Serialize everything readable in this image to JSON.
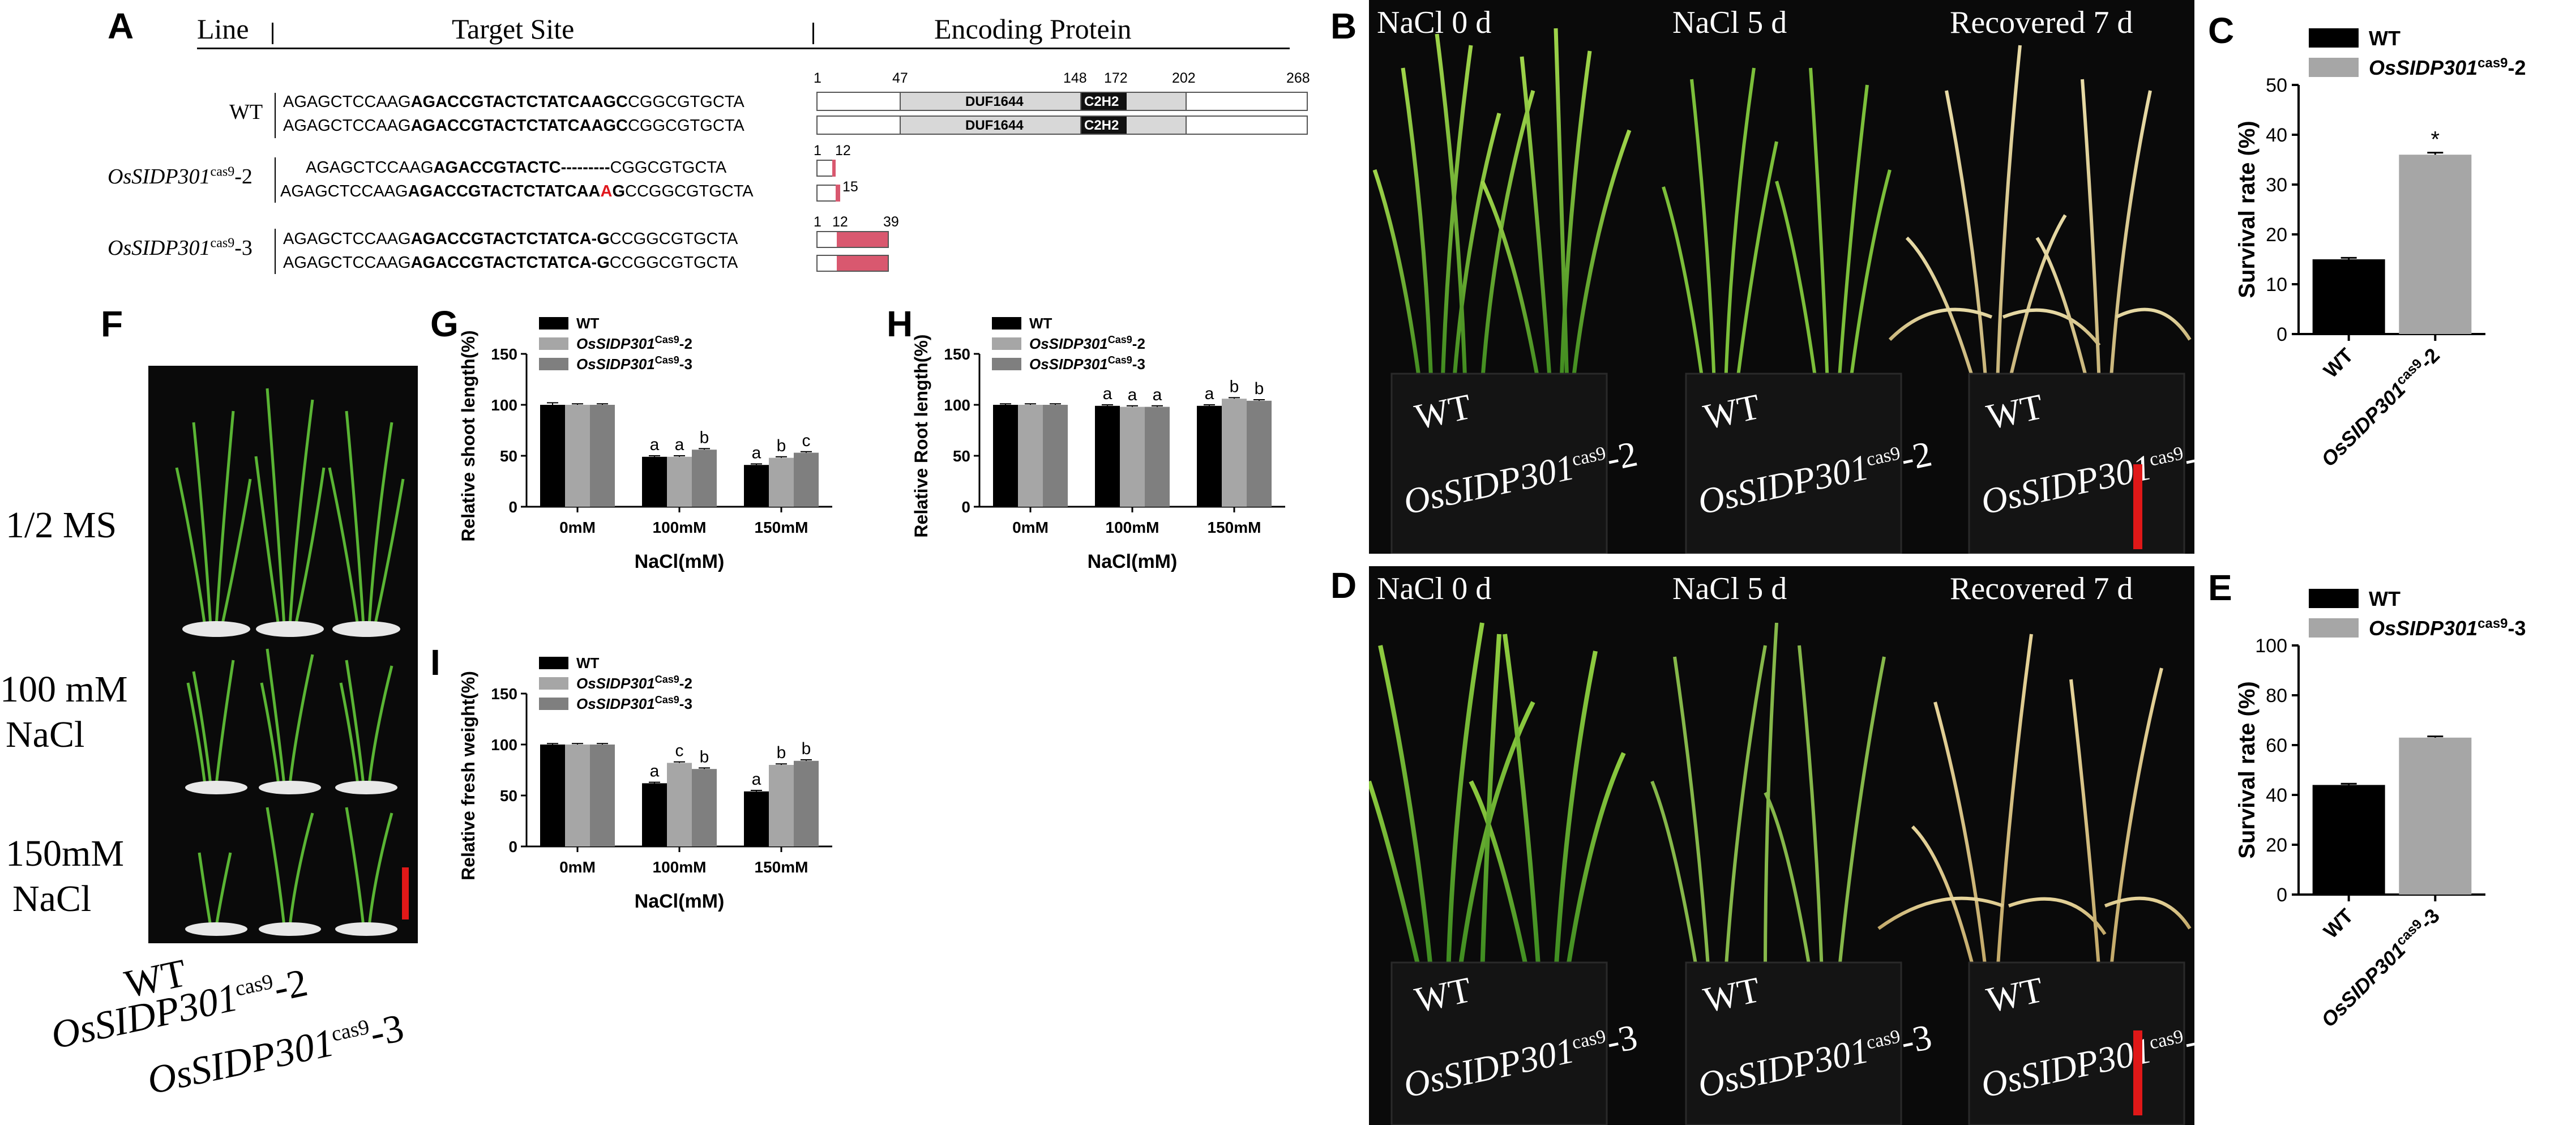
{
  "panels": {
    "A": "A",
    "B": "B",
    "C": "C",
    "D": "D",
    "E": "E",
    "F": "F",
    "G": "G",
    "H": "H",
    "I": "I"
  },
  "panel_a": {
    "header_line": "Line",
    "header_target": "Target Site",
    "header_protein": "Encoding Protein",
    "wt_label": "WT",
    "wt_seq1": {
      "pre": "AGAGCTCCAAG",
      "bold": "AGACCGTACTCTATCAAGC",
      "post": "CGGCGTGCTA"
    },
    "wt_seq2": {
      "pre": "AGAGCTCCAAG",
      "bold": "AGACCGTACTCTATCAAGC",
      "post": "CGGCGTGCTA"
    },
    "m2_label_main": "OsSIDP301",
    "m2_label_sup": "cas9",
    "m2_label_suffix": "-2",
    "m2_seq1": {
      "pre": "AGAGCTCCAAG",
      "bold": "AGACCGTACTC---------",
      "post": "CGGCGTGCTA"
    },
    "m2_seq2": {
      "pre": "AGAGCTCCAAG",
      "bold": "AGACCGTACTCTATCAA",
      "red": "A",
      "bold2": "G",
      "post": "CCGGCGTGCTA"
    },
    "m3_label_main": "OsSIDP301",
    "m3_label_sup": "cas9",
    "m3_label_suffix": "-3",
    "m3_seq1": {
      "pre": "AGAGCTCCAAG",
      "bold": "AGACCGTACTCTATCA-G",
      "post": "CCGGCGTGCTA"
    },
    "m3_seq2": {
      "pre": "AGAGCTCCAAG",
      "bold": "AGACCGTACTCTATCA-G",
      "post": "CCGGCGTGCTA"
    },
    "protein_ticks": [
      "1",
      "47",
      "148",
      "172",
      "202",
      "268"
    ],
    "domain_duf": "DUF1644",
    "domain_c2h2": "C2H2",
    "m2_ticks_a": [
      "1",
      "12"
    ],
    "m2_ticks_b": [
      "15"
    ],
    "m3_ticks": [
      "1",
      "12",
      "39"
    ]
  },
  "panel_b": {
    "cond1": "NaCl 0 d",
    "cond2": "NaCl 5 d",
    "cond3": "Recovered 7 d",
    "wt": "WT",
    "mut_main": "OsSIDP301",
    "mut_sup": "cas9",
    "mut_suffix": "-2"
  },
  "panel_d": {
    "cond1": "NaCl 0 d",
    "cond2": "NaCl 5 d",
    "cond3": "Recovered 7 d",
    "wt": "WT",
    "mut_main": "OsSIDP301",
    "mut_sup": "cas9",
    "mut_suffix": "-3"
  },
  "panel_f": {
    "row1": "1/2 MS",
    "row2a": "100 mM",
    "row2b": "NaCl",
    "row3a": "150mM",
    "row3b": "NaCl",
    "g1": "WT",
    "g2_main": "OsSIDP301",
    "g2_sup": "cas9",
    "g2_suffix": "-2",
    "g3_main": "OsSIDP301",
    "g3_sup": "cas9",
    "g3_suffix": "-3"
  },
  "colors": {
    "wt": "#000000",
    "m2": "#a6a6a6",
    "m3": "#7f7f7f",
    "scalebar": "#e01818",
    "mutation_red": "#e0181e",
    "truncated_protein": "#d9586f"
  },
  "chart_data": [
    {
      "id": "C",
      "type": "bar",
      "categories": [
        "WT",
        "OsSIDP301cas9-2"
      ],
      "category_display": [
        {
          "main": "WT",
          "sup": "",
          "suffix": ""
        },
        {
          "main": "OsSIDP301",
          "sup": "cas9",
          "suffix": "-2"
        }
      ],
      "values": [
        15,
        36
      ],
      "errors": [
        0.3,
        0.4
      ],
      "colors": [
        "#000000",
        "#a6a6a6"
      ],
      "annotations": [
        "",
        "*"
      ],
      "ylabel": "Survival rate (%)",
      "ylim": [
        0,
        50
      ],
      "yticks": [
        0,
        10,
        20,
        30,
        40,
        50
      ],
      "legend": [
        {
          "main": "WT",
          "sup": "",
          "suffix": ""
        },
        {
          "main": "OsSIDP301",
          "sup": "cas9",
          "suffix": "-2"
        }
      ],
      "legend_position": "top-left"
    },
    {
      "id": "E",
      "type": "bar",
      "categories": [
        "WT",
        "OsSIDP301cas9-3"
      ],
      "category_display": [
        {
          "main": "WT",
          "sup": "",
          "suffix": ""
        },
        {
          "main": "OsSIDP301",
          "sup": "cas9",
          "suffix": "-3"
        }
      ],
      "values": [
        44,
        63
      ],
      "errors": [
        0.5,
        0.5
      ],
      "colors": [
        "#000000",
        "#a6a6a6"
      ],
      "annotations": [
        "",
        ""
      ],
      "ylabel": "Survival rate (%)",
      "ylim": [
        0,
        100
      ],
      "yticks": [
        0,
        20,
        40,
        60,
        80,
        100
      ],
      "legend": [
        {
          "main": "WT",
          "sup": "",
          "suffix": ""
        },
        {
          "main": "OsSIDP301",
          "sup": "cas9",
          "suffix": "-3"
        }
      ],
      "legend_position": "top-left"
    },
    {
      "id": "G",
      "type": "bar",
      "categories": [
        "0mM",
        "100mM",
        "150mM"
      ],
      "series": [
        {
          "name": "WT",
          "values": [
            100,
            49,
            41
          ],
          "errors": [
            2,
            1,
            1
          ],
          "color": "#000000"
        },
        {
          "name": "OsSIDP301Cas9-2",
          "values": [
            100,
            49,
            48
          ],
          "errors": [
            1,
            1,
            1
          ],
          "color": "#a6a6a6"
        },
        {
          "name": "OsSIDP301Cas9-3",
          "values": [
            100,
            56,
            53
          ],
          "errors": [
            1,
            1,
            1
          ],
          "color": "#7f7f7f"
        }
      ],
      "letters": [
        [
          "",
          "",
          ""
        ],
        [
          "a",
          "a",
          "b"
        ],
        [
          "a",
          "b",
          "c"
        ]
      ],
      "ylabel": "Relative shoot length(%)",
      "xlabel": "NaCl(mM)",
      "ylim": [
        0,
        150
      ],
      "yticks": [
        0,
        50,
        100,
        150
      ],
      "legend": [
        {
          "main": "WT",
          "sup": "",
          "suffix": ""
        },
        {
          "main": "OsSIDP301",
          "sup": "Cas9",
          "suffix": "-2"
        },
        {
          "main": "OsSIDP301",
          "sup": "Cas9",
          "suffix": "-3"
        }
      ],
      "legend_position": "top-left"
    },
    {
      "id": "H",
      "type": "bar",
      "categories": [
        "0mM",
        "100mM",
        "150mM"
      ],
      "series": [
        {
          "name": "WT",
          "values": [
            100,
            99,
            99
          ],
          "errors": [
            1,
            1,
            1
          ],
          "color": "#000000"
        },
        {
          "name": "OsSIDP301Cas9-2",
          "values": [
            100,
            98,
            106
          ],
          "errors": [
            1,
            1,
            1
          ],
          "color": "#a6a6a6"
        },
        {
          "name": "OsSIDP301Cas9-3",
          "values": [
            100,
            98,
            104
          ],
          "errors": [
            1,
            1,
            1
          ],
          "color": "#7f7f7f"
        }
      ],
      "letters": [
        [
          "",
          "",
          ""
        ],
        [
          "a",
          "a",
          "a"
        ],
        [
          "a",
          "b",
          "b"
        ]
      ],
      "ylabel": "Relative Root length(%)",
      "xlabel": "NaCl(mM)",
      "ylim": [
        0,
        150
      ],
      "yticks": [
        0,
        50,
        100,
        150
      ],
      "legend": [
        {
          "main": "WT",
          "sup": "",
          "suffix": ""
        },
        {
          "main": "OsSIDP301",
          "sup": "Cas9",
          "suffix": "-2"
        },
        {
          "main": "OsSIDP301",
          "sup": "Cas9",
          "suffix": "-3"
        }
      ],
      "legend_position": "top-left"
    },
    {
      "id": "I",
      "type": "bar",
      "categories": [
        "0mM",
        "100mM",
        "150mM"
      ],
      "series": [
        {
          "name": "WT",
          "values": [
            100,
            62,
            54
          ],
          "errors": [
            1,
            1,
            1
          ],
          "color": "#000000"
        },
        {
          "name": "OsSIDP301Cas9-2",
          "values": [
            100,
            82,
            80
          ],
          "errors": [
            1,
            1,
            1
          ],
          "color": "#a6a6a6"
        },
        {
          "name": "OsSIDP301Cas9-3",
          "values": [
            100,
            76,
            84
          ],
          "errors": [
            1,
            1,
            1
          ],
          "color": "#7f7f7f"
        }
      ],
      "letters": [
        [
          "",
          "",
          ""
        ],
        [
          "a",
          "c",
          "b"
        ],
        [
          "a",
          "b",
          "b"
        ]
      ],
      "ylabel": "Relative fresh weight(%)",
      "xlabel": "NaCl(mM)",
      "ylim": [
        0,
        150
      ],
      "yticks": [
        0,
        50,
        100,
        150
      ],
      "legend": [
        {
          "main": "WT",
          "sup": "",
          "suffix": ""
        },
        {
          "main": "OsSIDP301",
          "sup": "Cas9",
          "suffix": "-2"
        },
        {
          "main": "OsSIDP301",
          "sup": "Cas9",
          "suffix": "-3"
        }
      ],
      "legend_position": "top-left"
    }
  ]
}
